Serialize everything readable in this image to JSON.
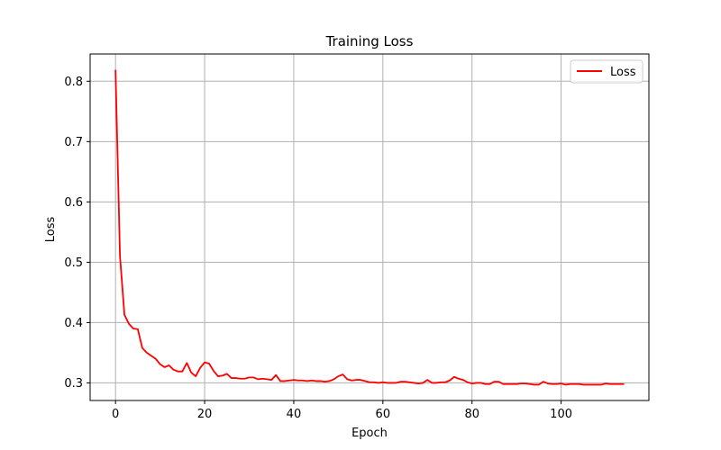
{
  "chart_data": {
    "type": "line",
    "title": "Training Loss",
    "xlabel": "Epoch",
    "ylabel": "Loss",
    "xlim": [
      -5.7,
      119.7
    ],
    "ylim": [
      0.2708,
      0.8452
    ],
    "xticks": [
      0,
      20,
      40,
      60,
      80,
      100
    ],
    "yticks": [
      0.3,
      0.4,
      0.5,
      0.6,
      0.7,
      0.8
    ],
    "xtick_labels": [
      "0",
      "20",
      "40",
      "60",
      "80",
      "100"
    ],
    "ytick_labels": [
      "0.3",
      "0.4",
      "0.5",
      "0.6",
      "0.7",
      "0.8"
    ],
    "grid": true,
    "legend": {
      "position": "top-right"
    },
    "series": [
      {
        "name": "Loss",
        "color": "#ff0000",
        "x": [
          0,
          1,
          2,
          3,
          4,
          5,
          6,
          7,
          8,
          9,
          10,
          11,
          12,
          13,
          14,
          15,
          16,
          17,
          18,
          19,
          20,
          21,
          22,
          23,
          24,
          25,
          26,
          27,
          28,
          29,
          30,
          31,
          32,
          33,
          34,
          35,
          36,
          37,
          38,
          39,
          40,
          41,
          42,
          43,
          44,
          45,
          46,
          47,
          48,
          49,
          50,
          51,
          52,
          53,
          54,
          55,
          56,
          57,
          58,
          59,
          60,
          61,
          62,
          63,
          64,
          65,
          66,
          67,
          68,
          69,
          70,
          71,
          72,
          73,
          74,
          75,
          76,
          77,
          78,
          79,
          80,
          81,
          82,
          83,
          84,
          85,
          86,
          87,
          88,
          89,
          90,
          91,
          92,
          93,
          94,
          95,
          96,
          97,
          98,
          99,
          100,
          101,
          102,
          103,
          104,
          105,
          106,
          107,
          108,
          109,
          110,
          111,
          112,
          113,
          114
        ],
        "values": [
          0.818,
          0.51,
          0.413,
          0.398,
          0.39,
          0.389,
          0.358,
          0.35,
          0.345,
          0.34,
          0.331,
          0.326,
          0.329,
          0.322,
          0.319,
          0.319,
          0.333,
          0.317,
          0.311,
          0.325,
          0.334,
          0.332,
          0.32,
          0.311,
          0.312,
          0.315,
          0.308,
          0.308,
          0.307,
          0.307,
          0.309,
          0.309,
          0.306,
          0.307,
          0.306,
          0.305,
          0.313,
          0.303,
          0.303,
          0.304,
          0.305,
          0.304,
          0.304,
          0.303,
          0.304,
          0.303,
          0.303,
          0.302,
          0.303,
          0.306,
          0.311,
          0.314,
          0.306,
          0.304,
          0.305,
          0.305,
          0.303,
          0.301,
          0.301,
          0.3,
          0.301,
          0.3,
          0.3,
          0.3,
          0.302,
          0.302,
          0.301,
          0.3,
          0.299,
          0.3,
          0.305,
          0.3,
          0.3,
          0.301,
          0.301,
          0.304,
          0.31,
          0.307,
          0.305,
          0.301,
          0.299,
          0.3,
          0.3,
          0.298,
          0.298,
          0.302,
          0.302,
          0.298,
          0.298,
          0.298,
          0.298,
          0.299,
          0.299,
          0.298,
          0.297,
          0.297,
          0.302,
          0.299,
          0.298,
          0.298,
          0.299,
          0.297,
          0.298,
          0.298,
          0.298,
          0.297,
          0.297,
          0.297,
          0.297,
          0.297,
          0.299,
          0.298,
          0.298,
          0.298,
          0.298
        ]
      }
    ]
  }
}
